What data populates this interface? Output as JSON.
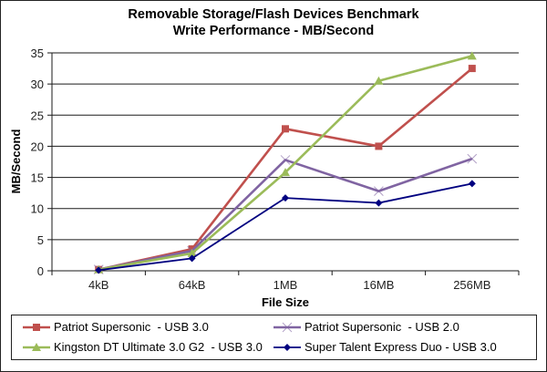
{
  "chart_data": {
    "type": "line",
    "title": "Removable Storage/Flash Devices Benchmark",
    "subtitle": "Write Performance - MB/Second",
    "xlabel": "File Size",
    "ylabel": "MB/Second",
    "categories": [
      "4kB",
      "64kB",
      "1MB",
      "16MB",
      "256MB"
    ],
    "ylim": [
      0,
      35
    ],
    "yticks": [
      0,
      5,
      10,
      15,
      20,
      25,
      30,
      35
    ],
    "grid": true,
    "legend_position": "bottom",
    "series": [
      {
        "name": "Patriot Supersonic  - USB 3.0",
        "color": "#c0504d",
        "marker": "square",
        "values": [
          0.2,
          3.5,
          22.8,
          20.0,
          32.5
        ]
      },
      {
        "name": "Patriot Supersonic  - USB 2.0",
        "color": "#8064a2",
        "marker": "x",
        "values": [
          0.2,
          3.2,
          17.8,
          12.8,
          18.0
        ]
      },
      {
        "name": "Kingston DT Ultimate 3.0 G2  - USB 3.0",
        "color": "#9bbb59",
        "marker": "triangle",
        "values": [
          0.2,
          2.8,
          15.8,
          30.5,
          34.5
        ]
      },
      {
        "name": "Super Talent Express Duo - USB 3.0",
        "color": "#000080",
        "marker": "diamond",
        "values": [
          0.1,
          2.0,
          11.7,
          10.9,
          14.0
        ]
      }
    ]
  }
}
